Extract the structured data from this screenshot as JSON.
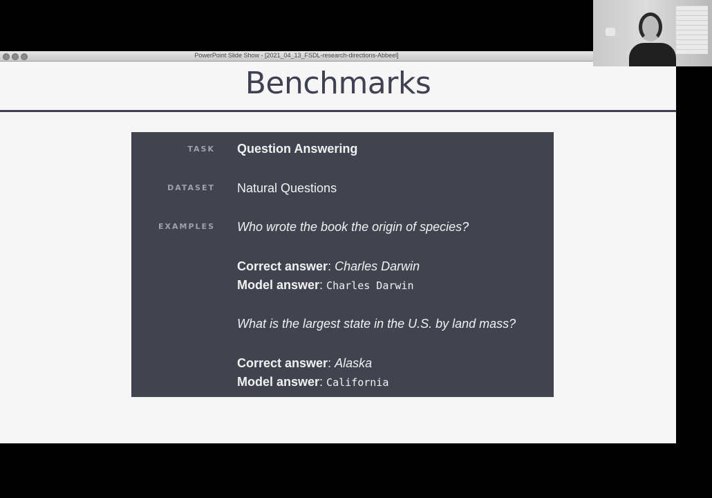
{
  "window": {
    "title": "PowerPoint Slide Show - [2021_04_13_FSDL-research-directions-Abbeel]"
  },
  "slide": {
    "title": "Benchmarks",
    "task_label": "TASK",
    "task_value": "Question Answering",
    "dataset_label": "DATASET",
    "dataset_value": "Natural Questions",
    "examples_label": "EXAMPLES",
    "examples": [
      {
        "question": "Who wrote the book the origin of species?",
        "correct_label": "Correct answer",
        "correct_value": "Charles Darwin",
        "model_label": "Model answer",
        "model_value": "Charles Darwin"
      },
      {
        "question": "What is the largest state in the U.S. by land mass?",
        "correct_label": "Correct answer",
        "correct_value": "Alaska",
        "model_label": "Model answer",
        "model_value": "California"
      }
    ]
  },
  "colors": {
    "panel": "#41434f",
    "title": "#3f4152",
    "slide_bg": "#f6f6f6"
  }
}
